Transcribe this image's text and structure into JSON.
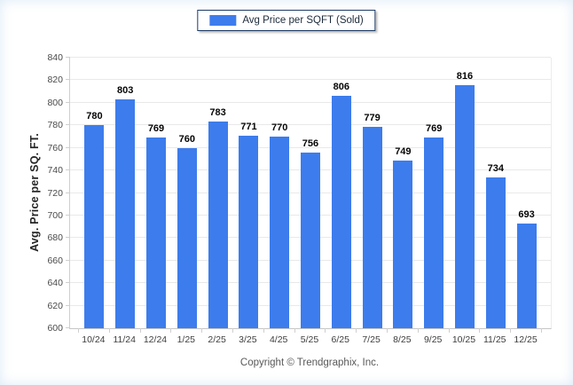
{
  "legend": {
    "label": "Avg Price per SQFT (Sold)",
    "swatch_color": "#3d7cec"
  },
  "footer": {
    "copyright": "Copyright © Trendgraphix, Inc."
  },
  "colors": {
    "bar": "#3d7cec",
    "gridline": "#e9e9e9",
    "axis": "#c6c6c6",
    "value_label": "#050505",
    "tick_label": "#4a4a4a",
    "legend_border": "#1b3a63"
  },
  "chart_data": {
    "type": "bar",
    "title": "",
    "xlabel": "",
    "ylabel": "Avg. Price per SQ. FT.",
    "series_name": "Avg Price per SQFT (Sold)",
    "categories": [
      "10/24",
      "11/24",
      "12/24",
      "1/25",
      "2/25",
      "3/25",
      "4/25",
      "5/25",
      "6/25",
      "7/25",
      "8/25",
      "9/25",
      "10/25",
      "11/25",
      "12/25"
    ],
    "values": [
      780,
      803,
      769,
      760,
      783,
      771,
      770,
      756,
      806,
      779,
      749,
      769,
      816,
      734,
      693
    ],
    "ylim": [
      600,
      840
    ],
    "yticks": [
      600,
      620,
      640,
      660,
      680,
      700,
      720,
      740,
      760,
      780,
      800,
      820,
      840
    ],
    "grid": true,
    "legend_position": "top-center",
    "bar_color": "#3d7cec"
  }
}
